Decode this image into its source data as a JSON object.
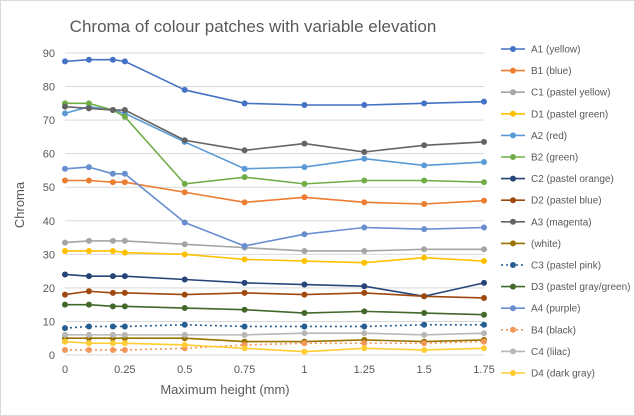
{
  "chart_data": {
    "type": "line",
    "title": "Chroma of colour patches with variable elevation",
    "xlabel": "Maximum height (mm)",
    "ylabel": "Chroma",
    "x": [
      0,
      0.1,
      0.2,
      0.25,
      0.5,
      0.75,
      1,
      1.25,
      1.5,
      1.75
    ],
    "x_ticks": [
      0,
      0.25,
      0.5,
      0.75,
      1,
      1.25,
      1.5,
      1.75
    ],
    "x_tick_labels": [
      "0",
      "0.25",
      "0.5",
      "0.75",
      "1",
      "1.25",
      "1.5",
      "1.75"
    ],
    "xlim": [
      0,
      1.75
    ],
    "ylim": [
      0,
      90
    ],
    "y_ticks": [
      0,
      10,
      20,
      30,
      40,
      50,
      60,
      70,
      80,
      90
    ],
    "grid": true,
    "legend_position": "right",
    "series": [
      {
        "name": "A1 (yellow)",
        "color": "#4472c4",
        "dash": false,
        "values": [
          87.5,
          88,
          88,
          87.5,
          79,
          75,
          74.5,
          74.5,
          75,
          75.5
        ]
      },
      {
        "name": "B1 (blue)",
        "color": "#ed7d31",
        "dash": false,
        "values": [
          52,
          52,
          51.5,
          51.5,
          48.5,
          45.5,
          47,
          45.5,
          45,
          46
        ]
      },
      {
        "name": "C1 (pastel yellow)",
        "color": "#a5a5a5",
        "dash": false,
        "values": [
          33.5,
          34,
          34,
          34,
          33,
          32,
          31,
          31,
          31.5,
          31.5
        ]
      },
      {
        "name": "D1 (pastel green)",
        "color": "#ffc000",
        "dash": false,
        "values": [
          31,
          31,
          31,
          30.5,
          30,
          28.5,
          28,
          27.5,
          29,
          28
        ]
      },
      {
        "name": "A2 (red)",
        "color": "#5b9bd5",
        "dash": false,
        "values": [
          72,
          74,
          73,
          72,
          63.5,
          55.5,
          56,
          58.5,
          56.5,
          57.5
        ]
      },
      {
        "name": "B2 (green)",
        "color": "#70ad47",
        "dash": false,
        "values": [
          75,
          75,
          73,
          71,
          51,
          53,
          51,
          52,
          52,
          51.5
        ]
      },
      {
        "name": "C2 (pastel orange)",
        "color": "#264478",
        "dash": false,
        "values": [
          24,
          23.5,
          23.5,
          23.5,
          22.5,
          21.5,
          21,
          20.5,
          17.5,
          21.5
        ]
      },
      {
        "name": "D2 (pastel blue)",
        "color": "#9e480e",
        "dash": false,
        "values": [
          18,
          19,
          18.5,
          18.5,
          18,
          18.5,
          18,
          18.5,
          17.5,
          17
        ]
      },
      {
        "name": "A3 (magenta)",
        "color": "#636363",
        "dash": false,
        "values": [
          74,
          73.5,
          73,
          73,
          64,
          61,
          63,
          60.5,
          62.5,
          63.5
        ]
      },
      {
        "name": "(white)",
        "color": "#997300",
        "dash": false,
        "values": [
          5,
          5,
          5,
          5,
          5,
          4,
          4,
          4.5,
          4,
          4.5
        ]
      },
      {
        "name": "C3 (pastel pink)",
        "color": "#255e91",
        "dash": true,
        "values": [
          8,
          8.5,
          8.5,
          8.5,
          9,
          8.5,
          8.5,
          8.5,
          9,
          9
        ]
      },
      {
        "name": "D3 (pastel gray/green)",
        "color": "#43682b",
        "dash": false,
        "values": [
          15,
          15,
          14.5,
          14.5,
          14,
          13.5,
          12.5,
          13,
          12.5,
          12
        ]
      },
      {
        "name": "A4 (purple)",
        "color": "#698ed0",
        "dash": false,
        "values": [
          55.5,
          56,
          54,
          54,
          39.5,
          32.5,
          36,
          38,
          37.5,
          38
        ]
      },
      {
        "name": "B4 (black)",
        "color": "#f1975a",
        "dash": true,
        "values": [
          1.5,
          1.5,
          1.5,
          1.5,
          2,
          3,
          3.5,
          3.5,
          3.5,
          4
        ]
      },
      {
        "name": "C4 (lilac)",
        "color": "#b7b7b7",
        "dash": false,
        "values": [
          6,
          6,
          6,
          6,
          6,
          6,
          6.5,
          6.5,
          6,
          6.5
        ]
      },
      {
        "name": "D4 (dark gray)",
        "color": "#ffcd33",
        "dash": false,
        "values": [
          4,
          3.5,
          3.5,
          3.5,
          3,
          2,
          1,
          2,
          1.5,
          2
        ]
      }
    ]
  }
}
